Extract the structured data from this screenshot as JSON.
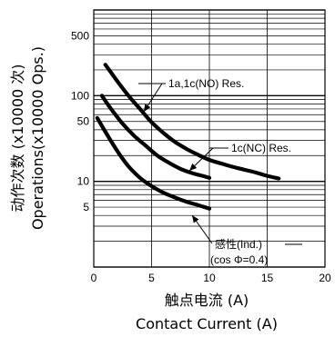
{
  "chart_data": {
    "type": "line",
    "xlabel": "触点电流 (A)",
    "xlabel_en": "Contact Current (A)",
    "ylabel": "动作次数 (x10000 次)",
    "ylabel_en": "Operations(x10000 Ops.)",
    "xlim": [
      0,
      20
    ],
    "ylim": [
      1,
      1000
    ],
    "yscale": "log",
    "grid": true,
    "x_ticks": [
      "0",
      "5",
      "10",
      "15",
      "20"
    ],
    "y_ticks": [
      {
        "value": 5,
        "label": "5"
      },
      {
        "value": 10,
        "label": "10"
      },
      {
        "value": 50,
        "label": "50"
      },
      {
        "value": 100,
        "label": "100"
      },
      {
        "value": 500,
        "label": "500"
      }
    ],
    "series": [
      {
        "name": "1a,1c(NO) Res.",
        "x": [
          1,
          2,
          3,
          4,
          5,
          6,
          7,
          8,
          9,
          10,
          11,
          12,
          13,
          14,
          15,
          16
        ],
        "y": [
          230,
          150,
          100,
          70,
          49,
          37,
          29,
          24,
          20.5,
          17.8,
          16.2,
          14.8,
          13.7,
          12.7,
          11.6,
          10.8
        ]
      },
      {
        "name": "1c(NC) Res.",
        "x": [
          0.7,
          1.5,
          2.5,
          3.5,
          4.5,
          5.5,
          6.5,
          7.5,
          8.5,
          9.5,
          10
        ],
        "y": [
          100,
          70,
          47,
          34,
          26,
          20,
          16.5,
          14,
          12.5,
          11.5,
          11
        ]
      },
      {
        "name": "感性(Ind.)",
        "name_extra": "(cos Φ=0.4)",
        "x": [
          0.3,
          1,
          2,
          3,
          4,
          5,
          6,
          7,
          8,
          9,
          10
        ],
        "y": [
          55,
          38,
          23,
          15,
          11,
          8.8,
          7.4,
          6.5,
          5.8,
          5.3,
          4.8
        ]
      }
    ]
  }
}
